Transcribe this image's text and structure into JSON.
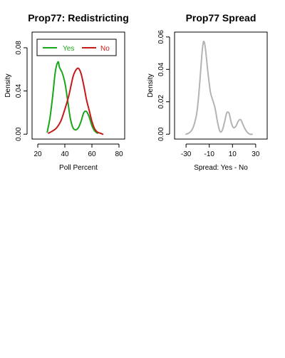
{
  "chart_data": [
    {
      "type": "line",
      "title": "Prop77: Redistricting",
      "xlabel": "Poll Percent",
      "ylabel": "Density",
      "xlim": [
        20,
        80
      ],
      "ylim": [
        0,
        0.09
      ],
      "x_ticks": [
        "20",
        "40",
        "60",
        "80"
      ],
      "y_ticks": [
        "0.00",
        "0.04",
        "0.08"
      ],
      "legend": {
        "placement": "top",
        "entries": [
          "Yes",
          "No"
        ]
      },
      "series": [
        {
          "name": "Yes",
          "color": "#1aa61a",
          "x": [
            27,
            29,
            31,
            33,
            35,
            36,
            38,
            40,
            42,
            44,
            46,
            48,
            50,
            52,
            54,
            56,
            58,
            60,
            62,
            64
          ],
          "y": [
            0.002,
            0.015,
            0.035,
            0.058,
            0.067,
            0.062,
            0.057,
            0.048,
            0.032,
            0.015,
            0.006,
            0.004,
            0.006,
            0.012,
            0.02,
            0.021,
            0.016,
            0.008,
            0.003,
            0.001
          ]
        },
        {
          "name": "No",
          "color": "#c41a1a",
          "x": [
            28,
            31,
            34,
            37,
            40,
            43,
            46,
            48,
            50,
            52,
            54,
            56,
            58,
            60,
            62,
            64,
            66,
            68
          ],
          "y": [
            0.001,
            0.003,
            0.006,
            0.012,
            0.023,
            0.036,
            0.053,
            0.059,
            0.061,
            0.056,
            0.045,
            0.032,
            0.022,
            0.012,
            0.005,
            0.002,
            0.001,
            0.0
          ]
        }
      ]
    },
    {
      "type": "line",
      "title": "Prop77 Spread",
      "xlabel": "Spread: Yes - No",
      "ylabel": "Density",
      "xlim": [
        -35,
        35
      ],
      "ylim": [
        0,
        0.06
      ],
      "x_ticks": [
        "-30",
        "-10",
        "10",
        "30"
      ],
      "y_ticks": [
        "0.00",
        "0.02",
        "0.04",
        "0.06"
      ],
      "series": [
        {
          "color": "#b4b4b4",
          "x": [
            -30,
            -27,
            -24,
            -21,
            -19,
            -17,
            -16,
            -15,
            -14,
            -13,
            -11,
            -9,
            -7,
            -5,
            -3,
            -1,
            1,
            3,
            5,
            7,
            9,
            11,
            13,
            15,
            17,
            19,
            21,
            23,
            25,
            27
          ],
          "y": [
            0.0,
            0.001,
            0.004,
            0.012,
            0.025,
            0.043,
            0.052,
            0.057,
            0.056,
            0.051,
            0.037,
            0.026,
            0.021,
            0.016,
            0.008,
            0.002,
            0.002,
            0.007,
            0.013,
            0.013,
            0.007,
            0.004,
            0.005,
            0.008,
            0.009,
            0.006,
            0.003,
            0.001,
            0.0,
            0.0
          ]
        }
      ]
    }
  ]
}
